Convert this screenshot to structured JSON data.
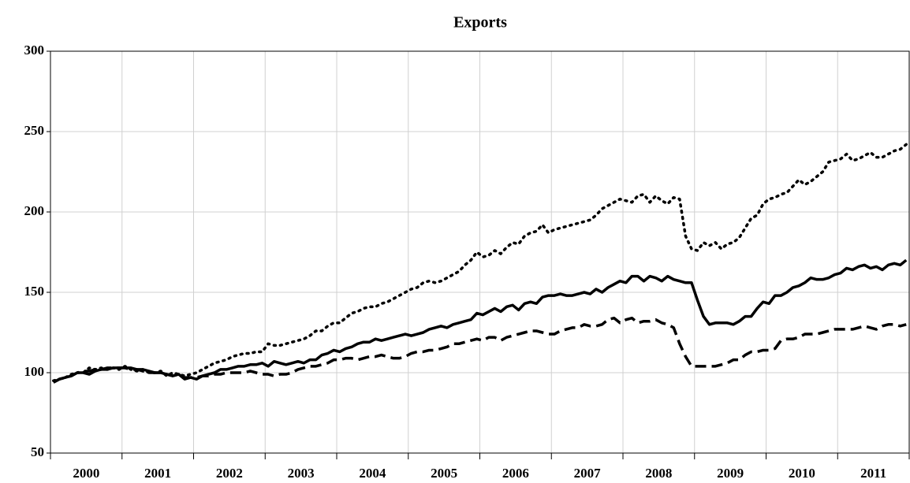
{
  "chart_data": {
    "type": "line",
    "title": "Exports",
    "categories": [
      null,
      null,
      null,
      null,
      null,
      null,
      "2000",
      null,
      null,
      null,
      null,
      null,
      null,
      null,
      null,
      null,
      null,
      null,
      "2001",
      null,
      null,
      null,
      null,
      null,
      null,
      null,
      null,
      null,
      null,
      null,
      "2002",
      null,
      null,
      null,
      null,
      null,
      null,
      null,
      null,
      null,
      null,
      null,
      "2003",
      null,
      null,
      null,
      null,
      null,
      null,
      null,
      null,
      null,
      null,
      null,
      "2004",
      null,
      null,
      null,
      null,
      null,
      null,
      null,
      null,
      null,
      null,
      null,
      "2005",
      null,
      null,
      null,
      null,
      null,
      null,
      null,
      null,
      null,
      null,
      null,
      "2006",
      null,
      null,
      null,
      null,
      null,
      null,
      null,
      null,
      null,
      null,
      null,
      "2007",
      null,
      null,
      null,
      null,
      null,
      null,
      null,
      null,
      null,
      null,
      null,
      "2008",
      null,
      null,
      null,
      null,
      null,
      null,
      null,
      null,
      null,
      null,
      null,
      "2009",
      null,
      null,
      null,
      null,
      null,
      null,
      null,
      null,
      null,
      null,
      null,
      "2010",
      null,
      null,
      null,
      null,
      null,
      null,
      null,
      null,
      null,
      null,
      null,
      "2011",
      null,
      null,
      null,
      null,
      null
    ],
    "series": [
      {
        "color": "#000000",
        "style": "solid",
        "values": [
          94,
          96,
          97,
          98,
          100,
          100,
          99,
          101,
          102,
          102,
          103,
          103,
          103,
          103,
          102,
          102,
          101,
          100,
          100,
          99,
          98,
          99,
          96,
          97,
          96,
          98,
          99,
          100,
          102,
          102,
          103,
          104,
          104,
          105,
          105,
          106,
          104,
          107,
          106,
          105,
          106,
          107,
          106,
          108,
          108,
          111,
          112,
          114,
          113,
          115,
          116,
          118,
          119,
          119,
          121,
          120,
          121,
          122,
          123,
          124,
          123,
          124,
          125,
          127,
          128,
          129,
          128,
          130,
          131,
          132,
          133,
          137,
          136,
          138,
          140,
          138,
          141,
          142,
          139,
          143,
          144,
          143,
          147,
          148,
          148,
          149,
          148,
          148,
          149,
          150,
          149,
          152,
          150,
          153,
          155,
          157,
          156,
          160,
          160,
          157,
          160,
          159,
          157,
          160,
          158,
          157,
          156,
          156,
          145,
          135,
          130,
          131,
          131,
          131,
          130,
          132,
          135,
          135,
          140,
          144,
          143,
          148,
          148,
          150,
          153,
          154,
          156,
          159,
          158,
          158,
          159,
          161,
          162,
          165,
          164,
          166,
          167,
          165,
          166,
          164,
          167,
          168,
          167,
          170
        ]
      },
      {
        "color": "#000000",
        "style": "dotted",
        "values": [
          95,
          96,
          97,
          99,
          100,
          100,
          103,
          102,
          103,
          102,
          103,
          102,
          104,
          102,
          101,
          102,
          100,
          100,
          101,
          98,
          100,
          99,
          98,
          99,
          100,
          102,
          104,
          106,
          107,
          108,
          110,
          111,
          112,
          112,
          113,
          113,
          118,
          117,
          117,
          118,
          119,
          120,
          121,
          123,
          126,
          126,
          129,
          131,
          131,
          134,
          137,
          138,
          140,
          141,
          141,
          143,
          144,
          146,
          148,
          150,
          152,
          153,
          156,
          157,
          156,
          157,
          159,
          161,
          163,
          167,
          170,
          175,
          172,
          173,
          176,
          174,
          178,
          181,
          180,
          185,
          187,
          188,
          192,
          187,
          189,
          190,
          191,
          192,
          193,
          194,
          195,
          198,
          202,
          204,
          206,
          208,
          207,
          206,
          210,
          211,
          206,
          210,
          207,
          205,
          209,
          208,
          185,
          177,
          176,
          181,
          179,
          181,
          177,
          180,
          181,
          184,
          190,
          196,
          198,
          205,
          208,
          209,
          211,
          212,
          216,
          220,
          217,
          219,
          222,
          225,
          231,
          232,
          233,
          236,
          232,
          233,
          235,
          237,
          234,
          234,
          236,
          238,
          239,
          242
        ]
      },
      {
        "color": "#000000",
        "style": "dashed",
        "values": [
          94,
          96,
          97,
          98,
          100,
          101,
          101,
          102,
          102,
          103,
          103,
          103,
          103,
          102,
          102,
          101,
          100,
          100,
          100,
          99,
          98,
          99,
          97,
          97,
          97,
          98,
          98,
          99,
          99,
          100,
          100,
          100,
          100,
          101,
          100,
          99,
          99,
          98,
          99,
          99,
          100,
          102,
          103,
          104,
          104,
          105,
          106,
          108,
          108,
          109,
          109,
          108,
          109,
          110,
          110,
          111,
          110,
          109,
          109,
          110,
          112,
          113,
          113,
          114,
          114,
          115,
          116,
          118,
          118,
          119,
          120,
          121,
          120,
          122,
          122,
          120,
          122,
          123,
          124,
          125,
          126,
          126,
          125,
          124,
          124,
          126,
          127,
          128,
          128,
          130,
          129,
          129,
          130,
          133,
          134,
          131,
          133,
          134,
          131,
          132,
          132,
          133,
          131,
          130,
          128,
          118,
          110,
          104,
          104,
          104,
          104,
          104,
          105,
          106,
          108,
          108,
          111,
          113,
          113,
          114,
          114,
          115,
          120,
          121,
          121,
          122,
          124,
          124,
          124,
          125,
          126,
          127,
          127,
          127,
          127,
          128,
          129,
          128,
          127,
          129,
          130,
          130,
          129,
          130
        ]
      }
    ],
    "ylim": [
      50,
      300
    ],
    "yticks": [
      50,
      100,
      150,
      200,
      250,
      300
    ],
    "grid": true
  }
}
